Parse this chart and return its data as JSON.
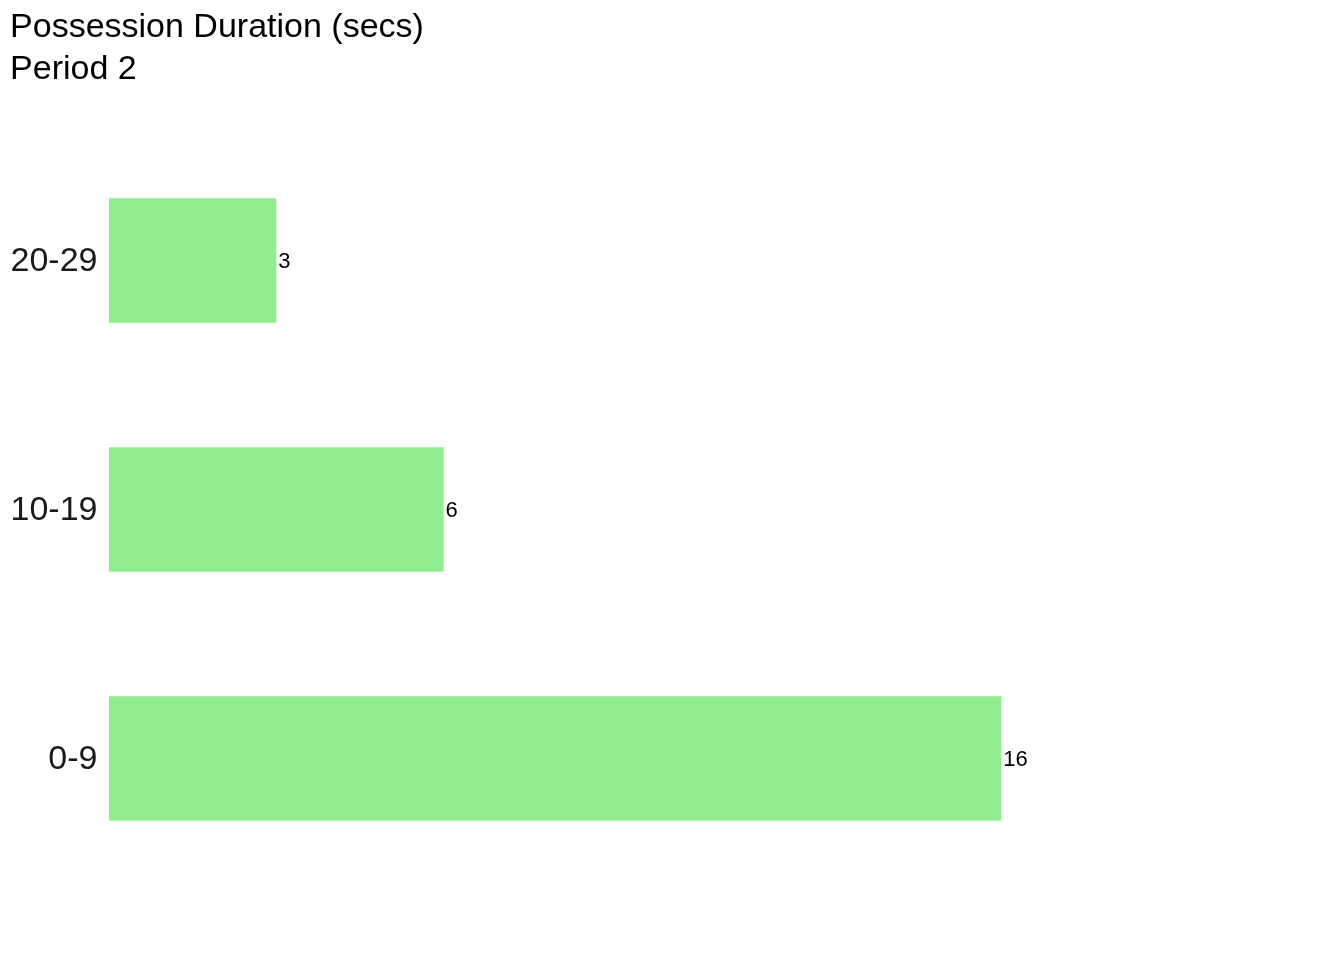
{
  "chart_data": {
    "type": "bar",
    "orientation": "horizontal",
    "title": "Possession Duration (secs)",
    "subtitle": "Period 2",
    "categories": [
      "20-29",
      "10-19",
      "0-9"
    ],
    "values": [
      3,
      6,
      16
    ],
    "color": "#90ee90",
    "data_labels": true,
    "grid": false,
    "tick_labels": "y"
  }
}
